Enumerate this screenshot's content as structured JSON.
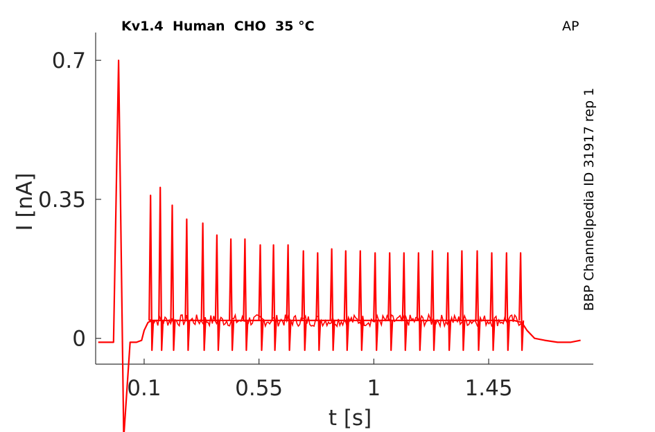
{
  "chart_data": {
    "type": "line",
    "title": "Kv1.4  Human  CHO  35 °C",
    "tag": "AP",
    "side_label": "BBP Channelpedia ID 31917 rep 1",
    "xlabel": "t [s]",
    "ylabel": "I [nA]",
    "xlim": [
      -0.09,
      1.86
    ],
    "ylim": [
      -0.065,
      0.77
    ],
    "x_ticks": [
      0.1,
      0.55,
      1,
      1.45
    ],
    "x_tick_labels": [
      "0.1",
      "0.55",
      "1",
      "1.45"
    ],
    "y_ticks": [
      0,
      0.35,
      0.7
    ],
    "y_tick_labels": [
      "0",
      "0.35",
      "0.7"
    ],
    "grid": false,
    "series": [
      {
        "color": "#ff0000",
        "x": [
          -0.08,
          -0.02,
          0.0,
          0.02,
          0.045,
          0.07,
          0.09,
          0.1,
          0.115,
          0.13,
          0.15,
          0.2,
          0.3,
          0.5,
          0.8,
          1.1,
          1.4,
          1.55,
          1.58,
          1.6,
          1.63,
          1.67,
          1.72,
          1.77,
          1.81
        ],
        "y": [
          -0.01,
          -0.01,
          0.7,
          -0.25,
          -0.01,
          -0.01,
          -0.005,
          0.02,
          0.04,
          0.045,
          0.045,
          0.045,
          0.045,
          0.045,
          0.045,
          0.045,
          0.045,
          0.045,
          0.04,
          0.02,
          0.0,
          -0.005,
          -0.01,
          -0.01,
          -0.005
        ]
      }
    ],
    "spikes": {
      "x": [
        0.125,
        0.163,
        0.21,
        0.267,
        0.33,
        0.385,
        0.44,
        0.495,
        0.555,
        0.607,
        0.664,
        0.724,
        0.78,
        0.835,
        0.89,
        0.947,
        1.005,
        1.062,
        1.118,
        1.175,
        1.23,
        1.29,
        1.345,
        1.405,
        1.462,
        1.52,
        1.575
      ],
      "y": [
        0.36,
        0.38,
        0.335,
        0.3,
        0.29,
        0.26,
        0.25,
        0.25,
        0.235,
        0.235,
        0.235,
        0.22,
        0.215,
        0.225,
        0.22,
        0.22,
        0.215,
        0.215,
        0.215,
        0.215,
        0.22,
        0.215,
        0.22,
        0.22,
        0.215,
        0.215,
        0.215
      ],
      "trough": -0.03
    }
  }
}
